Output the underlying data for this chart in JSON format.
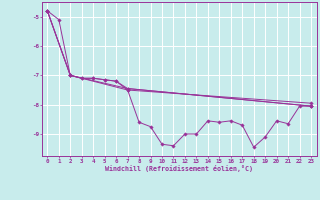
{
  "xlabel": "Windchill (Refroidissement éolien,°C)",
  "bg_color": "#c8ecec",
  "line_color": "#993399",
  "grid_color": "#ffffff",
  "xlim": [
    -0.5,
    23.5
  ],
  "ylim": [
    -9.75,
    -4.5
  ],
  "yticks": [
    -9,
    -8,
    -7,
    -6,
    -5
  ],
  "xticks": [
    0,
    1,
    2,
    3,
    4,
    5,
    6,
    7,
    8,
    9,
    10,
    11,
    12,
    13,
    14,
    15,
    16,
    17,
    18,
    19,
    20,
    21,
    22,
    23
  ],
  "series": [
    [
      0,
      -4.8
    ],
    [
      1,
      -5.1
    ],
    [
      2,
      -7.0
    ],
    [
      3,
      -7.1
    ],
    [
      4,
      -7.1
    ],
    [
      5,
      -7.15
    ],
    [
      6,
      -7.2
    ],
    [
      7,
      -7.5
    ],
    [
      8,
      -8.6
    ],
    [
      9,
      -8.75
    ],
    [
      10,
      -9.35
    ],
    [
      11,
      -9.4
    ],
    [
      12,
      -9.0
    ],
    [
      13,
      -9.0
    ],
    [
      14,
      -8.55
    ],
    [
      15,
      -8.6
    ],
    [
      16,
      -8.55
    ],
    [
      17,
      -8.7
    ],
    [
      18,
      -9.45
    ],
    [
      19,
      -9.1
    ],
    [
      20,
      -8.55
    ],
    [
      21,
      -8.65
    ],
    [
      22,
      -8.05
    ],
    [
      23,
      -8.05
    ]
  ],
  "series2": [
    [
      0,
      -4.8
    ],
    [
      2,
      -7.0
    ],
    [
      3,
      -7.1
    ],
    [
      4,
      -7.1
    ],
    [
      5,
      -7.15
    ],
    [
      6,
      -7.2
    ],
    [
      7,
      -7.45
    ],
    [
      23,
      -8.05
    ]
  ],
  "series3": [
    [
      0,
      -4.8
    ],
    [
      2,
      -7.0
    ],
    [
      7,
      -7.45
    ],
    [
      23,
      -8.05
    ]
  ],
  "series4": [
    [
      0,
      -4.8
    ],
    [
      2,
      -7.0
    ],
    [
      7,
      -7.5
    ],
    [
      23,
      -7.95
    ]
  ]
}
